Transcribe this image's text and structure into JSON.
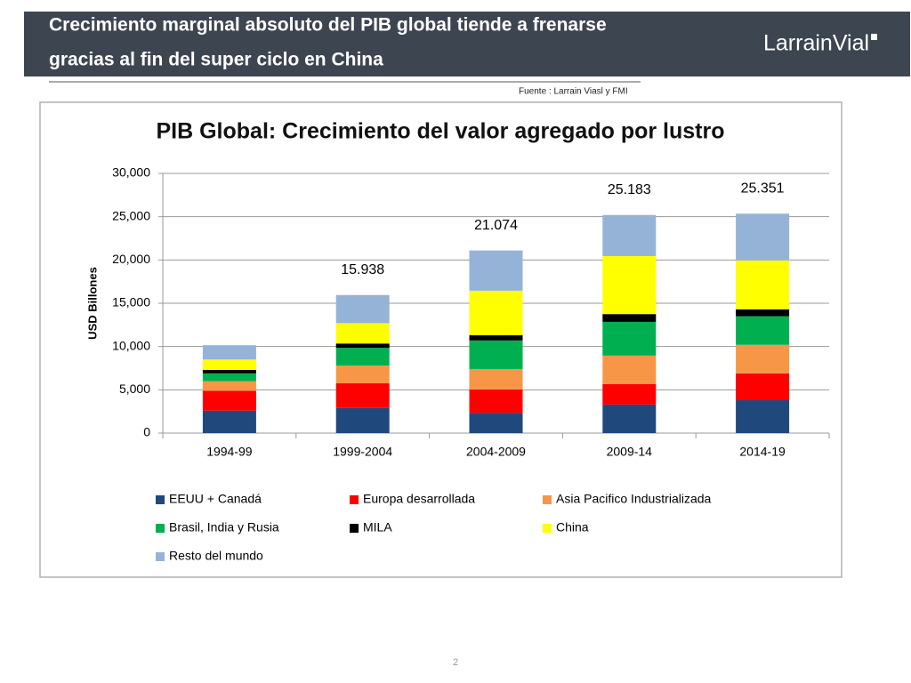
{
  "header": {
    "title_lines": [
      "Crecimiento marginal absoluto del PIB global tiende a frenarse",
      "gracias al fin del super ciclo en China"
    ],
    "logo": "LarrainVial",
    "source": "Fuente : Larrain Viasl y FMI"
  },
  "page_number": "2",
  "chart_data": {
    "type": "stacked_bar",
    "title": "PIB Global: Crecimiento del valor agregado por lustro",
    "y_label": "USD Billones",
    "categories": [
      "1994-99",
      "1999-2004",
      "2004-2009",
      "2009-14",
      "2014-19"
    ],
    "series": [
      {
        "name": "EEUU + Canadá",
        "color": "#1f497d",
        "values": [
          2600,
          2900,
          2350,
          3300,
          3800
        ]
      },
      {
        "name": "Europa desarrollada",
        "color": "#ff0000",
        "values": [
          2300,
          2850,
          2700,
          2350,
          3100
        ]
      },
      {
        "name": "Asia Pacifico Industrializada",
        "color": "#f79646",
        "values": [
          1100,
          2050,
          2350,
          3300,
          3300
        ]
      },
      {
        "name": "Brasil, India y Rusia",
        "color": "#00b050",
        "values": [
          900,
          2050,
          3300,
          3900,
          3300
        ]
      },
      {
        "name": "MILA",
        "color": "#000000",
        "values": [
          400,
          500,
          600,
          900,
          800
        ]
      },
      {
        "name": "China",
        "color": "#ffff00",
        "values": [
          1200,
          2350,
          5150,
          6700,
          5650
        ]
      },
      {
        "name": "Resto del mundo",
        "color": "#95b3d7",
        "values": [
          1650,
          3250,
          4650,
          4750,
          5400
        ]
      }
    ],
    "annotations": [
      {
        "category": "1999-2004",
        "label": "15.938"
      },
      {
        "category": "2004-2009",
        "label": "21.074"
      },
      {
        "category": "2009-14",
        "label": "25.183"
      },
      {
        "category": "2014-19",
        "label": "25.351"
      }
    ],
    "ylim": [
      0,
      30000
    ],
    "yticks": [
      0,
      {
        "value": 5000,
        "label": "5,000"
      },
      {
        "value": 10000,
        "label": "10,000"
      },
      {
        "value": 15000,
        "label": "15,000"
      },
      {
        "value": 20000,
        "label": "20,000"
      },
      {
        "value": 25000,
        "label": "25,000"
      },
      {
        "value": 30000,
        "label": "30,000"
      }
    ],
    "grid": true,
    "legend": "bottom"
  }
}
